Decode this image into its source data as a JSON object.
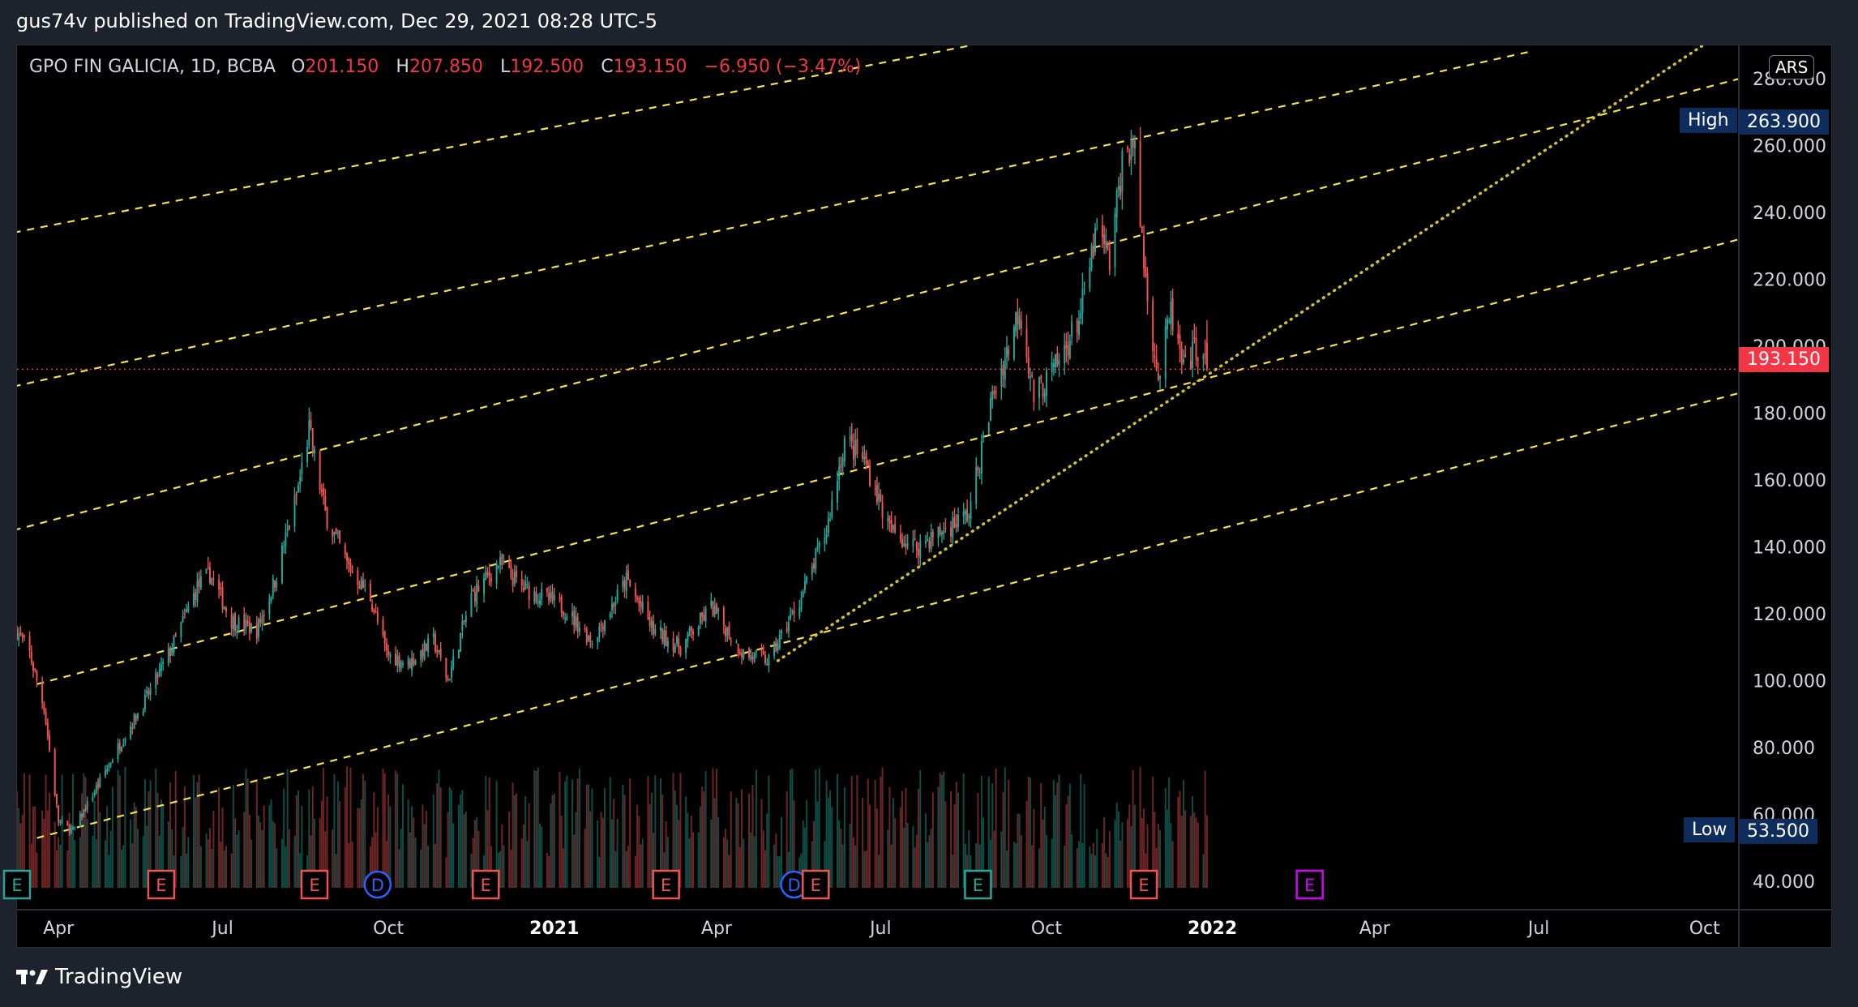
{
  "header": {
    "published": "gus74v published on TradingView.com, Dec 29, 2021 08:28 UTC-5"
  },
  "legend": {
    "symbol": "GPO FIN GALICIA, 1D, BCBA",
    "o_key": "O",
    "o": "201.150",
    "h_key": "H",
    "h": "207.850",
    "l_key": "L",
    "l": "192.500",
    "c_key": "C",
    "c": "193.150",
    "change": "−6.950 (−3.47%)"
  },
  "currency": "ARS",
  "tags": {
    "high_label": "High",
    "high_value": "263.900",
    "low_label": "Low",
    "low_value": "53.500",
    "last_value": "193.150"
  },
  "brand": {
    "name": "TradingView"
  },
  "colors": {
    "up": "#26a69a",
    "down": "#ef5350",
    "channel": "#f7e14a",
    "last_price": "#f23645",
    "high_low_tag": "#0f2d5c",
    "event_e": "#ef5350",
    "event_e_teal": "#26a69a",
    "event_e_future": "#d500f9",
    "event_d": "#2962ff"
  },
  "chart_data": {
    "type": "candlestick",
    "symbol": "GPO FIN GALICIA",
    "interval": "1D",
    "exchange": "BCBA",
    "x_axis_labels": [
      "Apr",
      "Jul",
      "Oct",
      "2021",
      "Apr",
      "Jul",
      "Oct",
      "2022",
      "Apr",
      "Jul",
      "Oct"
    ],
    "x_axis_range": [
      "2020-03-09",
      "2022-10-20"
    ],
    "y_axis_labels": [
      "40.000",
      "60.000",
      "80.000",
      "100.000",
      "120.000",
      "140.000",
      "160.000",
      "180.000",
      "200.000",
      "220.000",
      "240.000",
      "260.000",
      "280.000"
    ],
    "y_range": [
      33,
      290
    ],
    "last_price": 193.15,
    "high": 263.9,
    "low": 53.5,
    "price_path": [
      [
        "2020-03-09",
        115
      ],
      [
        "2020-03-16",
        108
      ],
      [
        "2020-03-24",
        92
      ],
      [
        "2020-04-01",
        58
      ],
      [
        "2020-04-09",
        55
      ],
      [
        "2020-04-22",
        68
      ],
      [
        "2020-05-06",
        82
      ],
      [
        "2020-05-20",
        95
      ],
      [
        "2020-06-03",
        110
      ],
      [
        "2020-06-17",
        128
      ],
      [
        "2020-06-24",
        132
      ],
      [
        "2020-07-06",
        118
      ],
      [
        "2020-07-20",
        115
      ],
      [
        "2020-07-30",
        130
      ],
      [
        "2020-08-11",
        155
      ],
      [
        "2020-08-18",
        175
      ],
      [
        "2020-08-27",
        150
      ],
      [
        "2020-09-08",
        135
      ],
      [
        "2020-09-21",
        125
      ],
      [
        "2020-09-30",
        108
      ],
      [
        "2020-10-12",
        105
      ],
      [
        "2020-10-26",
        112
      ],
      [
        "2020-11-03",
        100
      ],
      [
        "2020-11-16",
        125
      ],
      [
        "2020-12-01",
        135
      ],
      [
        "2020-12-14",
        128
      ],
      [
        "2021-01-06",
        122
      ],
      [
        "2021-01-22",
        112
      ],
      [
        "2021-02-10",
        130
      ],
      [
        "2021-02-25",
        115
      ],
      [
        "2021-03-12",
        110
      ],
      [
        "2021-03-29",
        122
      ],
      [
        "2021-04-16",
        108
      ],
      [
        "2021-04-30",
        106
      ],
      [
        "2021-05-18",
        125
      ],
      [
        "2021-06-01",
        145
      ],
      [
        "2021-06-11",
        172
      ],
      [
        "2021-06-23",
        165
      ],
      [
        "2021-07-06",
        145
      ],
      [
        "2021-07-20",
        140
      ],
      [
        "2021-08-05",
        145
      ],
      [
        "2021-08-19",
        150
      ],
      [
        "2021-09-01",
        185
      ],
      [
        "2021-09-10",
        200
      ],
      [
        "2021-09-16",
        212
      ],
      [
        "2021-09-24",
        185
      ],
      [
        "2021-10-08",
        195
      ],
      [
        "2021-10-20",
        210
      ],
      [
        "2021-10-29",
        235
      ],
      [
        "2021-11-05",
        225
      ],
      [
        "2021-11-12",
        255
      ],
      [
        "2021-11-18",
        262
      ],
      [
        "2021-11-25",
        220
      ],
      [
        "2021-12-02",
        190
      ],
      [
        "2021-12-09",
        210
      ],
      [
        "2021-12-16",
        192
      ],
      [
        "2021-12-23",
        200
      ],
      [
        "2021-12-29",
        193.15
      ]
    ],
    "volume": "histogram at bottom, colored by candle direction, no scale shown",
    "trendlines": [
      {
        "style": "dashed",
        "color": "#f7e14a",
        "from": [
          "2020-03-20",
          53
        ],
        "to": [
          "2022-10-20",
          186
        ]
      },
      {
        "style": "dashed",
        "color": "#f7e14a",
        "from": [
          "2020-03-20",
          99
        ],
        "to": [
          "2022-10-20",
          232
        ]
      },
      {
        "style": "dashed",
        "color": "#f7e14a",
        "from": [
          "2020-03-07",
          145
        ],
        "to": [
          "2022-10-20",
          280
        ]
      },
      {
        "style": "dashed",
        "color": "#f7e14a",
        "from": [
          "2020-03-07",
          188
        ],
        "to": [
          "2022-06-25",
          288
        ]
      },
      {
        "style": "dashed",
        "color": "#f7e14a",
        "from": [
          "2020-03-07",
          234
        ],
        "to": [
          "2021-08-20",
          290
        ]
      },
      {
        "style": "dotted",
        "color": "#d4c130",
        "from": [
          "2021-05-05",
          106
        ],
        "to": [
          "2022-09-30",
          290
        ]
      }
    ],
    "events": [
      {
        "type": "E",
        "date": "2020-03-09",
        "color": "#26a69a"
      },
      {
        "type": "E",
        "date": "2020-05-28",
        "color": "#ef5350"
      },
      {
        "type": "E",
        "date": "2020-08-21",
        "color": "#ef5350"
      },
      {
        "type": "D",
        "date": "2020-09-25",
        "color": "#2962ff"
      },
      {
        "type": "E",
        "date": "2020-11-24",
        "color": "#ef5350"
      },
      {
        "type": "E",
        "date": "2021-03-04",
        "color": "#ef5350"
      },
      {
        "type": "D",
        "date": "2021-05-14",
        "color": "#2962ff"
      },
      {
        "type": "E",
        "date": "2021-05-26",
        "color": "#ef5350"
      },
      {
        "type": "E",
        "date": "2021-08-24",
        "color": "#26a69a"
      },
      {
        "type": "E",
        "date": "2021-11-24",
        "color": "#ef5350"
      },
      {
        "type": "E",
        "date": "2022-02-24",
        "color": "#d500f9"
      }
    ]
  }
}
